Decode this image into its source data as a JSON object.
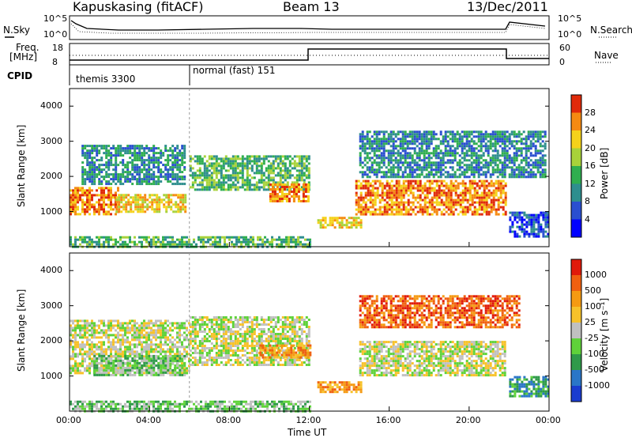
{
  "header": {
    "radar": "Kapuskasing (fitACF)",
    "beam": "Beam 13",
    "date": "13/Dec/2011"
  },
  "panels": {
    "nsky_label": "N.Sky",
    "nsearch_label": "N.Search",
    "noise_ticks": [
      "10^5",
      "10^0"
    ],
    "freq_label": "Freq.",
    "freq_unit": "[MHz]",
    "freq_ticks": [
      "18",
      "8"
    ],
    "nave_label": "Nave",
    "nave_ticks": [
      "60",
      "0"
    ],
    "cpid_label": "CPID",
    "cpid_segments": [
      "themis 3300",
      "normal (fast) 151"
    ]
  },
  "chart_data": [
    {
      "type": "heatmap",
      "name": "power",
      "xlabel": "",
      "ylabel": "Slant Range [km]",
      "x_ticks": [
        "00:00",
        "04:00",
        "08:00",
        "12:00",
        "16:00",
        "20:00",
        "00:00"
      ],
      "y_ticks": [
        "1000",
        "2000",
        "3000",
        "4000"
      ],
      "ylim": [
        0,
        4500
      ],
      "xlim_hours": [
        0,
        24
      ],
      "colorbar_label": "Power [dB]",
      "colorbar_ticks": [
        "4",
        "8",
        "12",
        "16",
        "20",
        "24",
        "28"
      ],
      "colors": [
        "#0000ff",
        "#2a4fd0",
        "#2e8e8e",
        "#2fae4f",
        "#a8d23a",
        "#f5d21a",
        "#f58a12",
        "#e02a0a"
      ],
      "bands": [
        {
          "t0": 0.0,
          "t1": 2.4,
          "r0": 950,
          "r1": 1700,
          "level": 6
        },
        {
          "t0": 0.6,
          "t1": 5.8,
          "r0": 1800,
          "r1": 2900,
          "level": 2
        },
        {
          "t0": 2.3,
          "t1": 5.8,
          "r0": 1000,
          "r1": 1500,
          "level": 5
        },
        {
          "t0": 6.0,
          "t1": 12.0,
          "r0": 1600,
          "r1": 2600,
          "level": 3
        },
        {
          "t0": 10.0,
          "t1": 12.0,
          "r0": 1300,
          "r1": 1800,
          "level": 6
        },
        {
          "t0": 12.4,
          "t1": 14.6,
          "r0": 550,
          "r1": 850,
          "level": 5
        },
        {
          "t0": 14.3,
          "t1": 21.8,
          "r0": 950,
          "r1": 1900,
          "level": 6
        },
        {
          "t0": 14.5,
          "t1": 23.8,
          "r0": 2000,
          "r1": 3300,
          "level": 2
        },
        {
          "t0": 22.0,
          "t1": 24.0,
          "r0": 300,
          "r1": 1000,
          "level": 1
        },
        {
          "t0": 0.0,
          "t1": 12.0,
          "r0": 0,
          "r1": 300,
          "level": 3
        }
      ]
    },
    {
      "type": "heatmap",
      "name": "velocity",
      "xlabel": "Time UT",
      "ylabel": "Slant Range [km]",
      "x_ticks": [
        "00:00",
        "04:00",
        "08:00",
        "12:00",
        "16:00",
        "20:00",
        "00:00"
      ],
      "y_ticks": [
        "1000",
        "2000",
        "3000",
        "4000"
      ],
      "ylim": [
        0,
        4500
      ],
      "xlim_hours": [
        0,
        24
      ],
      "colorbar_label": "Velocity [m s⁻¹]",
      "colorbar_ticks": [
        "1000",
        "500",
        "100",
        "25",
        "-25",
        "-100",
        "-500",
        "-1000"
      ],
      "colors": [
        "#1a3ccf",
        "#2a76c8",
        "#2f9a4a",
        "#5fd23a",
        "#c0c0c0",
        "#f7c22a",
        "#f59a12",
        "#f06010",
        "#e01a0a"
      ],
      "bands": [
        {
          "t0": 0.0,
          "t1": 6.0,
          "r0": 1100,
          "r1": 2600,
          "level": 4
        },
        {
          "t0": 1.2,
          "t1": 5.8,
          "r0": 1000,
          "r1": 1600,
          "level": 3
        },
        {
          "t0": 6.0,
          "t1": 12.0,
          "r0": 1300,
          "r1": 2700,
          "level": 4
        },
        {
          "t0": 9.5,
          "t1": 12.0,
          "r0": 1500,
          "r1": 1900,
          "level": 6
        },
        {
          "t0": 12.4,
          "t1": 14.6,
          "r0": 550,
          "r1": 850,
          "level": 6
        },
        {
          "t0": 14.5,
          "t1": 21.8,
          "r0": 1000,
          "r1": 2000,
          "level": 4
        },
        {
          "t0": 14.5,
          "t1": 22.5,
          "r0": 2400,
          "r1": 3300,
          "level": 7
        },
        {
          "t0": 22.0,
          "t1": 24.0,
          "r0": 400,
          "r1": 1000,
          "level": 2
        },
        {
          "t0": 0.0,
          "t1": 12.0,
          "r0": 0,
          "r1": 300,
          "level": 3
        }
      ]
    }
  ]
}
